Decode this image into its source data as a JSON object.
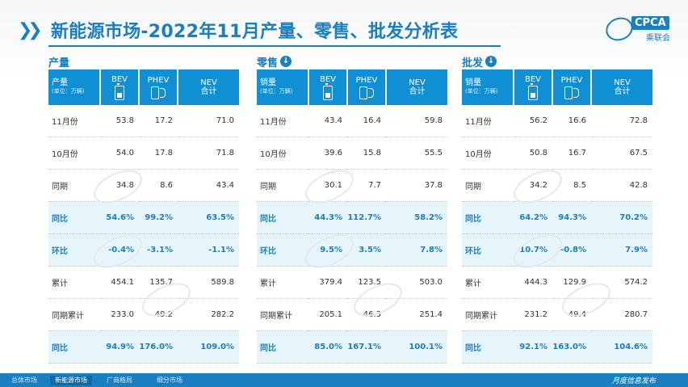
{
  "title": "新能源市场-2022年11月产量、零售、批发分析表",
  "logo": {
    "mark": "CPCA",
    "sub": "乘联会"
  },
  "panels": [
    {
      "heading": "产量",
      "has_download_icon": false,
      "header": {
        "label": "产量",
        "unit": "(单位：万辆)",
        "bev": "BEV",
        "phev": "PHEV",
        "nev1": "NEV",
        "nev2": "合计"
      },
      "rows": [
        {
          "label": "11月份",
          "bev": "53.8",
          "phev": "17.2",
          "nev": "71.0",
          "highlight": false
        },
        {
          "label": "10月份",
          "bev": "54.0",
          "phev": "17.8",
          "nev": "71.8",
          "highlight": false
        },
        {
          "label": "同期",
          "bev": "34.8",
          "phev": "8.6",
          "nev": "43.4",
          "highlight": false
        },
        {
          "label": "同比",
          "bev": "54.6%",
          "phev": "99.2%",
          "nev": "63.5%",
          "highlight": true
        },
        {
          "label": "环比",
          "bev": "-0.4%",
          "phev": "-3.1%",
          "nev": "-1.1%",
          "highlight": true
        },
        {
          "label": "累计",
          "bev": "454.1",
          "phev": "135.7",
          "nev": "589.8",
          "highlight": false
        },
        {
          "label": "同期累计",
          "bev": "233.0",
          "phev": "49.2",
          "nev": "282.2",
          "highlight": false
        },
        {
          "label": "同比",
          "bev": "94.9%",
          "phev": "176.0%",
          "nev": "109.0%",
          "highlight": true
        }
      ]
    },
    {
      "heading": "零售",
      "has_download_icon": true,
      "header": {
        "label": "销量",
        "unit": "(单位：万辆)",
        "bev": "BEV",
        "phev": "PHEV",
        "nev1": "NEV",
        "nev2": "合计"
      },
      "rows": [
        {
          "label": "11月份",
          "bev": "43.4",
          "phev": "16.4",
          "nev": "59.8",
          "highlight": false
        },
        {
          "label": "10月份",
          "bev": "39.6",
          "phev": "15.8",
          "nev": "55.5",
          "highlight": false
        },
        {
          "label": "同期",
          "bev": "30.1",
          "phev": "7.7",
          "nev": "37.8",
          "highlight": false
        },
        {
          "label": "同比",
          "bev": "44.3%",
          "phev": "112.7%",
          "nev": "58.2%",
          "highlight": true
        },
        {
          "label": "环比",
          "bev": "9.5%",
          "phev": "3.5%",
          "nev": "7.8%",
          "highlight": true
        },
        {
          "label": "累计",
          "bev": "379.4",
          "phev": "123.5",
          "nev": "503.0",
          "highlight": false
        },
        {
          "label": "同期累计",
          "bev": "205.1",
          "phev": "46.3",
          "nev": "251.4",
          "highlight": false
        },
        {
          "label": "同比",
          "bev": "85.0%",
          "phev": "167.1%",
          "nev": "100.1%",
          "highlight": true
        }
      ]
    },
    {
      "heading": "批发",
      "has_download_icon": true,
      "header": {
        "label": "销量",
        "unit": "(单位：万辆)",
        "bev": "BEV",
        "phev": "PHEV",
        "nev1": "NEV",
        "nev2": "合计"
      },
      "rows": [
        {
          "label": "11月份",
          "bev": "56.2",
          "phev": "16.6",
          "nev": "72.8",
          "highlight": false
        },
        {
          "label": "10月份",
          "bev": "50.8",
          "phev": "16.7",
          "nev": "67.5",
          "highlight": false
        },
        {
          "label": "同期",
          "bev": "34.2",
          "phev": "8.5",
          "nev": "42.8",
          "highlight": false
        },
        {
          "label": "同比",
          "bev": "64.2%",
          "phev": "94.3%",
          "nev": "70.2%",
          "highlight": true
        },
        {
          "label": "环比",
          "bev": "10.7%",
          "phev": "-0.8%",
          "nev": "7.9%",
          "highlight": true
        },
        {
          "label": "累计",
          "bev": "444.3",
          "phev": "129.9",
          "nev": "574.2",
          "highlight": false
        },
        {
          "label": "同期累计",
          "bev": "231.2",
          "phev": "49.4",
          "nev": "280.7",
          "highlight": false
        },
        {
          "label": "同比",
          "bev": "92.1%",
          "phev": "163.0%",
          "nev": "104.6%",
          "highlight": true
        }
      ]
    }
  ],
  "footer": {
    "tabs": [
      "总体市场",
      "新能源市场",
      "厂商格局",
      "细分市场"
    ],
    "active_tab": 1,
    "right_text": "月度信息发布"
  },
  "colors": {
    "accent": "#1a7fc1",
    "header_bg": "#0f8fd4",
    "highlight_row_bg": "#e6f5fc"
  }
}
